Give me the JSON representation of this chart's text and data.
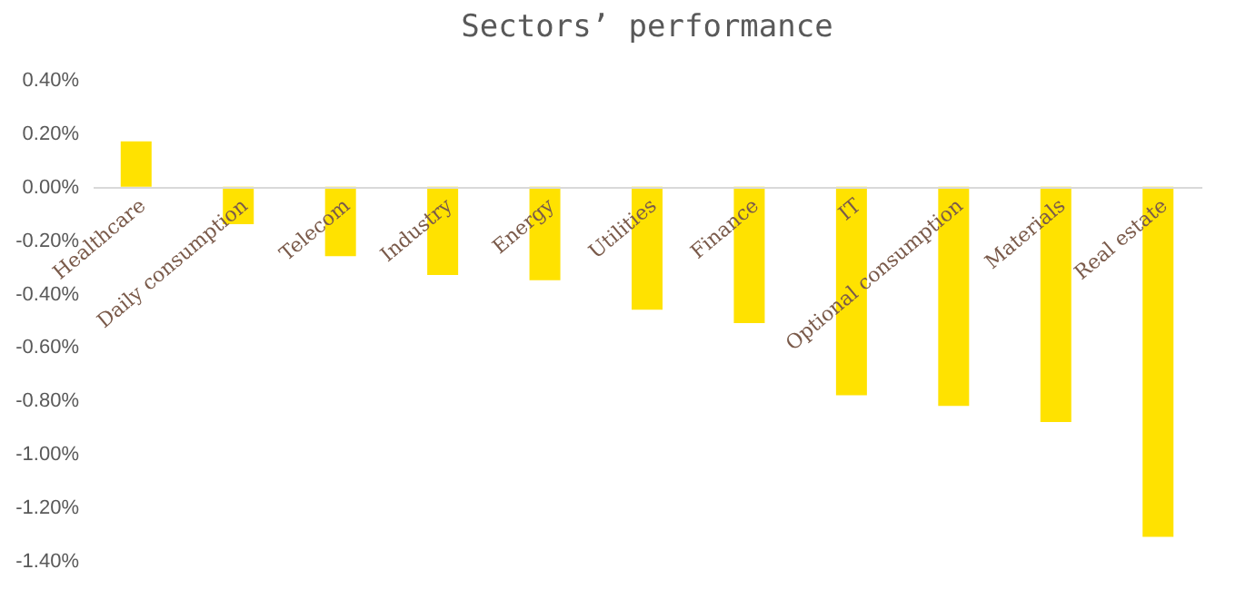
{
  "chart_data": {
    "type": "bar",
    "title": "Sectors’ performance",
    "categories": [
      "Healthcare",
      "Daily consumption",
      "Telecom",
      "Industry",
      "Energy",
      "Utilities",
      "Finance",
      "IT",
      "Optional consumption",
      "Materials",
      "Real estate"
    ],
    "values": [
      0.17,
      -0.14,
      -0.26,
      -0.33,
      -0.35,
      -0.46,
      -0.51,
      -0.78,
      -0.82,
      -0.88,
      -1.31
    ],
    "color": "#ffe200",
    "ylim": [
      -1.4,
      0.4
    ],
    "yticks": [
      {
        "value": 0.4,
        "label": "0.40%"
      },
      {
        "value": 0.2,
        "label": "0.20%"
      },
      {
        "value": 0,
        "label": "0.00%"
      },
      {
        "value": -0.2,
        "label": "-0.20%"
      },
      {
        "value": -0.4,
        "label": "-0.40%"
      },
      {
        "value": -0.6,
        "label": "-0.60%"
      },
      {
        "value": -0.8,
        "label": "-0.80%"
      },
      {
        "value": -1,
        "label": "-1.00%"
      },
      {
        "value": -1.2,
        "label": "-1.20%"
      },
      {
        "value": -1.4,
        "label": "-1.40%"
      }
    ],
    "grid": false
  }
}
